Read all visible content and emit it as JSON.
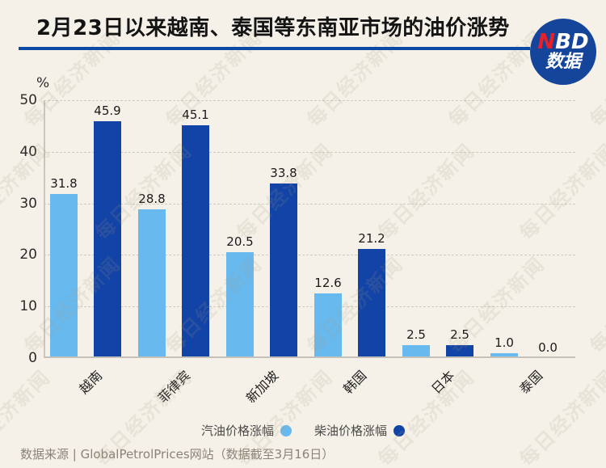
{
  "title": "2月23日以来越南、泰国等东南亚市场的油价涨势",
  "logo": {
    "name_red": "N",
    "name_rest": "BD",
    "subtitle": "数据"
  },
  "chart_data": {
    "type": "bar",
    "title": "2月23日以来越南、泰国等东南亚市场的油价涨势",
    "ylabel": "%",
    "ylim": [
      0,
      50
    ],
    "yticks": [
      0,
      10,
      20,
      30,
      40,
      50
    ],
    "grid": "horizontal-dashed",
    "legend_position": "bottom",
    "value_labels": true,
    "categories": [
      "越南",
      "菲律宾",
      "新加坡",
      "韩国",
      "日本",
      "泰国"
    ],
    "series": [
      {
        "name": "汽油价格涨幅",
        "color": "#68B9EE",
        "values": [
          31.8,
          28.8,
          20.5,
          12.6,
          2.5,
          1.0
        ]
      },
      {
        "name": "柴油价格涨幅",
        "color": "#1243A6",
        "values": [
          45.9,
          45.1,
          33.8,
          21.2,
          2.5,
          0.0
        ]
      }
    ]
  },
  "footer": "数据来源 | GlobalPetrolPrices网站（数据截至3月16日）",
  "watermark": "每日经济新闻",
  "colors": {
    "background": "#F5F1E8",
    "title_underline": "#0B4BA4",
    "logo_circle": "#15459A",
    "logo_red": "#E62129",
    "axis": "#C9C6BE",
    "gridline": "#CFCCC3"
  }
}
